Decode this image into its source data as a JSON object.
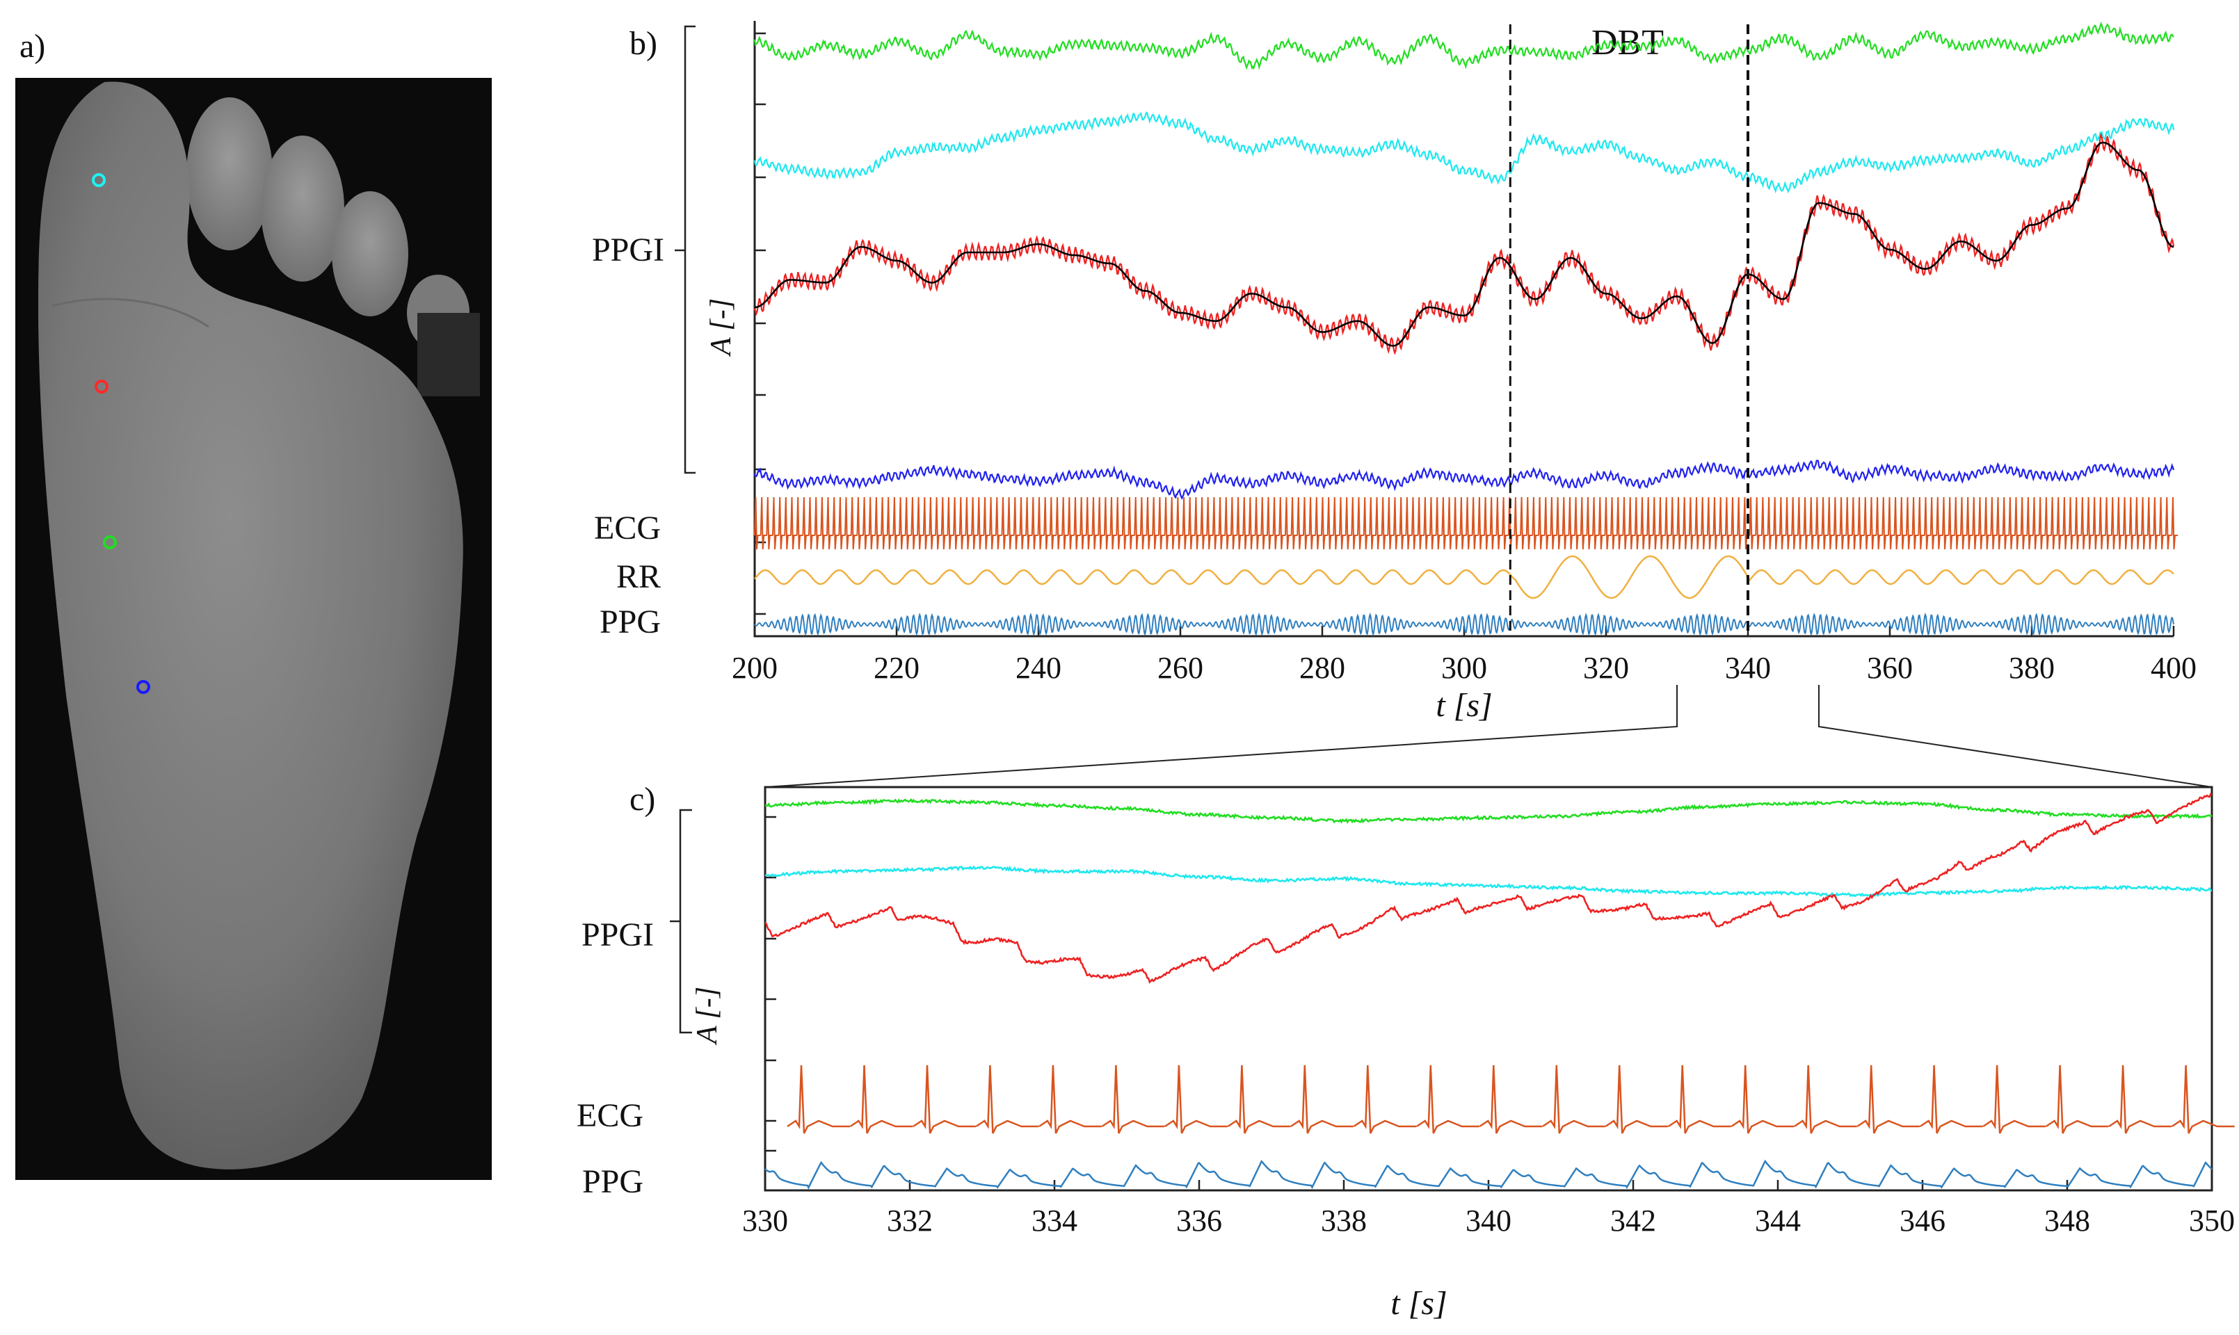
{
  "figure": {
    "panel_a_label": "a)",
    "panel_b_label": "b)",
    "panel_c_label": "c)"
  },
  "colors": {
    "roi_cyan": "#1ff2f2",
    "roi_red": "#ff2a2a",
    "roi_green": "#22dd22",
    "roi_blue": "#1a1aff",
    "ppgi_green": "#22dd22",
    "ppgi_cyan": "#1ee8ee",
    "ppgi_red": "#ee2222",
    "ppgi_blue": "#2222ee",
    "ppgi_fit": "#000000",
    "ecg": "#d9541f",
    "rr": "#f0b040",
    "ppg": "#2f7fbf"
  },
  "chart_data": [
    {
      "type": "line",
      "panel": "b)",
      "xlabel": "t [s]",
      "ylabel": "A [-]",
      "xlim": [
        200,
        400
      ],
      "xticks": [
        200,
        220,
        240,
        260,
        280,
        300,
        320,
        340,
        360,
        380,
        400
      ],
      "annotation": "DBT",
      "event_lines": [
        306.5,
        340
      ],
      "zoom_window": [
        330,
        350
      ],
      "row_labels": {
        "ppgi": "PPGI",
        "ecg": "ECG",
        "rr": "RR",
        "ppg": "PPG"
      },
      "series": [
        {
          "name": "PPGI green",
          "color_key": "ppgi_green",
          "x": [
            200,
            205,
            210,
            215,
            220,
            225,
            230,
            235,
            240,
            245,
            250,
            255,
            260,
            265,
            270,
            275,
            280,
            285,
            290,
            295,
            300,
            305,
            310,
            315,
            320,
            325,
            330,
            335,
            340,
            345,
            350,
            355,
            360,
            365,
            370,
            375,
            380,
            385,
            390,
            395,
            400
          ],
          "y": [
            0.9,
            0.78,
            0.87,
            0.8,
            0.9,
            0.79,
            0.95,
            0.82,
            0.8,
            0.88,
            0.87,
            0.85,
            0.81,
            0.92,
            0.72,
            0.88,
            0.77,
            0.9,
            0.75,
            0.92,
            0.74,
            0.83,
            0.82,
            0.79,
            0.87,
            0.86,
            0.9,
            0.77,
            0.83,
            0.92,
            0.78,
            0.92,
            0.8,
            0.95,
            0.86,
            0.89,
            0.84,
            0.92,
            1.0,
            0.91,
            0.93
          ]
        },
        {
          "name": "PPGI cyan",
          "color_key": "ppgi_cyan",
          "x": [
            200,
            205,
            210,
            215,
            220,
            225,
            230,
            235,
            240,
            245,
            250,
            255,
            260,
            265,
            270,
            275,
            280,
            285,
            290,
            295,
            300,
            305,
            310,
            315,
            320,
            325,
            330,
            335,
            340,
            345,
            350,
            355,
            360,
            365,
            370,
            375,
            380,
            385,
            390,
            395,
            400
          ],
          "y": [
            0.67,
            0.63,
            0.6,
            0.61,
            0.72,
            0.75,
            0.75,
            0.81,
            0.85,
            0.88,
            0.9,
            0.93,
            0.89,
            0.8,
            0.74,
            0.79,
            0.74,
            0.72,
            0.77,
            0.71,
            0.62,
            0.57,
            0.8,
            0.73,
            0.77,
            0.69,
            0.62,
            0.67,
            0.58,
            0.52,
            0.61,
            0.67,
            0.64,
            0.68,
            0.69,
            0.72,
            0.66,
            0.74,
            0.82,
            0.9,
            0.86
          ]
        },
        {
          "name": "PPGI red",
          "color_key": "ppgi_red",
          "x": [
            200,
            205,
            210,
            215,
            220,
            225,
            230,
            235,
            240,
            245,
            250,
            255,
            260,
            265,
            270,
            275,
            280,
            285,
            290,
            295,
            300,
            305,
            310,
            315,
            320,
            325,
            330,
            335,
            340,
            345,
            350,
            355,
            360,
            365,
            370,
            375,
            380,
            385,
            390,
            395,
            400
          ],
          "y": [
            0.4,
            0.5,
            0.49,
            0.62,
            0.57,
            0.49,
            0.6,
            0.6,
            0.63,
            0.59,
            0.56,
            0.46,
            0.38,
            0.35,
            0.45,
            0.4,
            0.31,
            0.35,
            0.26,
            0.4,
            0.37,
            0.58,
            0.43,
            0.58,
            0.45,
            0.36,
            0.44,
            0.27,
            0.52,
            0.43,
            0.78,
            0.74,
            0.61,
            0.54,
            0.64,
            0.57,
            0.7,
            0.76,
            1.0,
            0.9,
            0.62
          ]
        },
        {
          "name": "PPGI blue",
          "color_key": "ppgi_blue",
          "x": [
            200,
            205,
            210,
            215,
            220,
            225,
            230,
            235,
            240,
            245,
            250,
            255,
            260,
            265,
            270,
            275,
            280,
            285,
            290,
            295,
            300,
            305,
            310,
            315,
            320,
            325,
            330,
            335,
            340,
            345,
            350,
            355,
            360,
            365,
            370,
            375,
            380,
            385,
            390,
            395,
            400
          ],
          "y": [
            0.2,
            0.12,
            0.15,
            0.13,
            0.18,
            0.22,
            0.19,
            0.16,
            0.14,
            0.18,
            0.2,
            0.13,
            0.05,
            0.16,
            0.12,
            0.18,
            0.13,
            0.18,
            0.12,
            0.2,
            0.16,
            0.13,
            0.2,
            0.12,
            0.18,
            0.12,
            0.2,
            0.24,
            0.19,
            0.22,
            0.26,
            0.17,
            0.23,
            0.18,
            0.17,
            0.23,
            0.19,
            0.17,
            0.24,
            0.19,
            0.22
          ]
        }
      ]
    },
    {
      "type": "line",
      "panel": "c)",
      "xlabel": "t [s]",
      "ylabel": "A [-]",
      "xlim": [
        330,
        350
      ],
      "xticks": [
        330,
        332,
        334,
        336,
        338,
        340,
        342,
        344,
        346,
        348,
        350
      ],
      "row_labels": {
        "ppgi": "PPGI",
        "ecg": "ECG",
        "ppg": "PPG"
      },
      "series": [
        {
          "name": "PPGI green",
          "color_key": "ppgi_green",
          "x": [
            330,
            331,
            332,
            333,
            334,
            335,
            336,
            337,
            338,
            339,
            340,
            341,
            342,
            343,
            344,
            345,
            346,
            347,
            348,
            349,
            350
          ],
          "y": [
            0.78,
            0.8,
            0.81,
            0.8,
            0.78,
            0.76,
            0.72,
            0.7,
            0.68,
            0.69,
            0.7,
            0.71,
            0.74,
            0.77,
            0.79,
            0.8,
            0.79,
            0.75,
            0.72,
            0.71,
            0.71
          ]
        },
        {
          "name": "PPGI cyan",
          "color_key": "ppgi_cyan",
          "x": [
            330,
            331,
            332,
            333,
            334,
            335,
            336,
            337,
            338,
            339,
            340,
            341,
            342,
            343,
            344,
            345,
            346,
            347,
            348,
            349,
            350
          ],
          "y": [
            0.66,
            0.68,
            0.69,
            0.7,
            0.68,
            0.68,
            0.65,
            0.63,
            0.64,
            0.61,
            0.6,
            0.59,
            0.57,
            0.56,
            0.56,
            0.55,
            0.56,
            0.57,
            0.59,
            0.59,
            0.58
          ]
        },
        {
          "name": "PPGI red",
          "color_key": "ppgi_red",
          "x": [
            330,
            331,
            332,
            333,
            334,
            335,
            336,
            337,
            338,
            339,
            340,
            341,
            342,
            343,
            344,
            345,
            346,
            347,
            348,
            349,
            350
          ],
          "y": [
            0.55,
            0.58,
            0.6,
            0.52,
            0.45,
            0.4,
            0.44,
            0.5,
            0.55,
            0.61,
            0.63,
            0.64,
            0.61,
            0.58,
            0.61,
            0.64,
            0.7,
            0.78,
            0.86,
            0.9,
            0.95
          ]
        }
      ]
    }
  ]
}
